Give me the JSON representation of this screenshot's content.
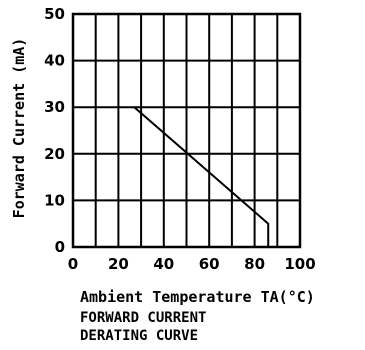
{
  "chart_data": {
    "type": "line",
    "xlabel": "Ambient Temperature TA(°C)",
    "ylabel": "Forward Current (mA)",
    "caption_line1": "FORWARD CURRENT",
    "caption_line2": "DERATING CURVE",
    "xlim": [
      0,
      100
    ],
    "ylim": [
      0,
      50
    ],
    "x_ticks": [
      0,
      20,
      40,
      60,
      80,
      100
    ],
    "y_ticks": [
      0,
      10,
      20,
      30,
      40,
      50
    ],
    "grid": true,
    "series": [
      {
        "points": [
          {
            "x": 27,
            "y": 30
          },
          {
            "x": 86,
            "y": 5
          },
          {
            "x": 86,
            "y": 0
          }
        ]
      }
    ],
    "colors": {
      "line": "#000000",
      "grid": "#000000"
    }
  }
}
